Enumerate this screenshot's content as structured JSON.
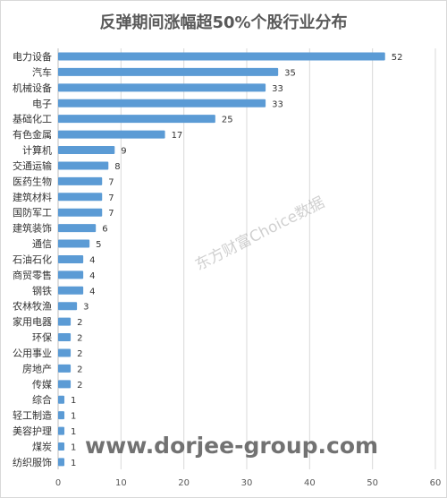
{
  "chart_data": {
    "type": "bar",
    "orientation": "horizontal",
    "title": "反弹期间涨幅超50%个股行业分布",
    "categories": [
      "电力设备",
      "汽车",
      "机械设备",
      "电子",
      "基础化工",
      "有色金属",
      "计算机",
      "交通运输",
      "医药生物",
      "建筑材料",
      "国防军工",
      "建筑装饰",
      "通信",
      "石油石化",
      "商贸零售",
      "钢铁",
      "农林牧渔",
      "家用电器",
      "环保",
      "公用事业",
      "房地产",
      "传媒",
      "综合",
      "轻工制造",
      "美容护理",
      "煤炭",
      "纺织服饰"
    ],
    "values": [
      52,
      35,
      33,
      33,
      25,
      17,
      9,
      8,
      7,
      7,
      7,
      6,
      5,
      4,
      4,
      4,
      3,
      2,
      2,
      2,
      2,
      2,
      1,
      1,
      1,
      1,
      1
    ],
    "xlim": [
      0,
      60
    ],
    "xticks": [
      0,
      10,
      20,
      30,
      40,
      50,
      60
    ],
    "xlabel": "",
    "ylabel": "",
    "grid": true,
    "data_labels": true,
    "bar_color": "#5b9bd5"
  },
  "watermark": {
    "text": "东方财富Choice数据",
    "url": "www.dorjee-group.com"
  }
}
